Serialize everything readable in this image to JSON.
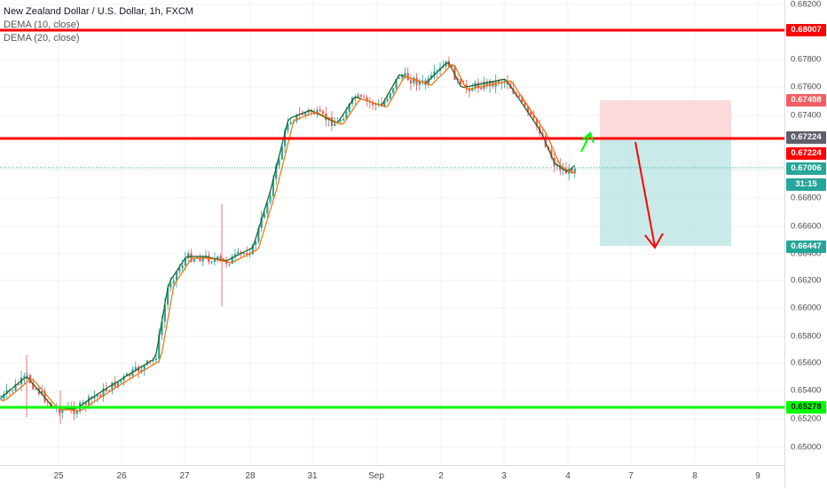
{
  "legend": {
    "title": "New Zealand Dollar / U.S. Dollar, 1h, FXCM",
    "study1": "DEMA (10, close)",
    "study2": "DEMA (20, close)"
  },
  "price_axis": {
    "ticks": [
      "0.68200",
      "0.67800",
      "0.67600",
      "0.67400",
      "0.66800",
      "0.66600",
      "0.66400",
      "0.66200",
      "0.66000",
      "0.65800",
      "0.65600",
      "0.65400",
      "0.65200",
      "0.65000"
    ]
  },
  "badges": {
    "resistance_top": "0.68007",
    "target_stop": "0.67498",
    "level_gray": "0.67224",
    "level_red": "0.67224",
    "current_price": "0.67006",
    "countdown": "31:15",
    "target_profit": "0.66447",
    "support": "0.65278"
  },
  "time_axis": {
    "labels": [
      "25",
      "26",
      "27",
      "28",
      "31",
      "Sep",
      "2",
      "3",
      "4",
      "7",
      "8",
      "9"
    ]
  },
  "colors": {
    "red_line": "#ff0000",
    "green_line": "#00ff00",
    "up_candle": "#26a69a",
    "down_candle": "#ef5350",
    "stop_zone": "#f8c9cb",
    "profit_zone": "#b3e2df"
  }
}
